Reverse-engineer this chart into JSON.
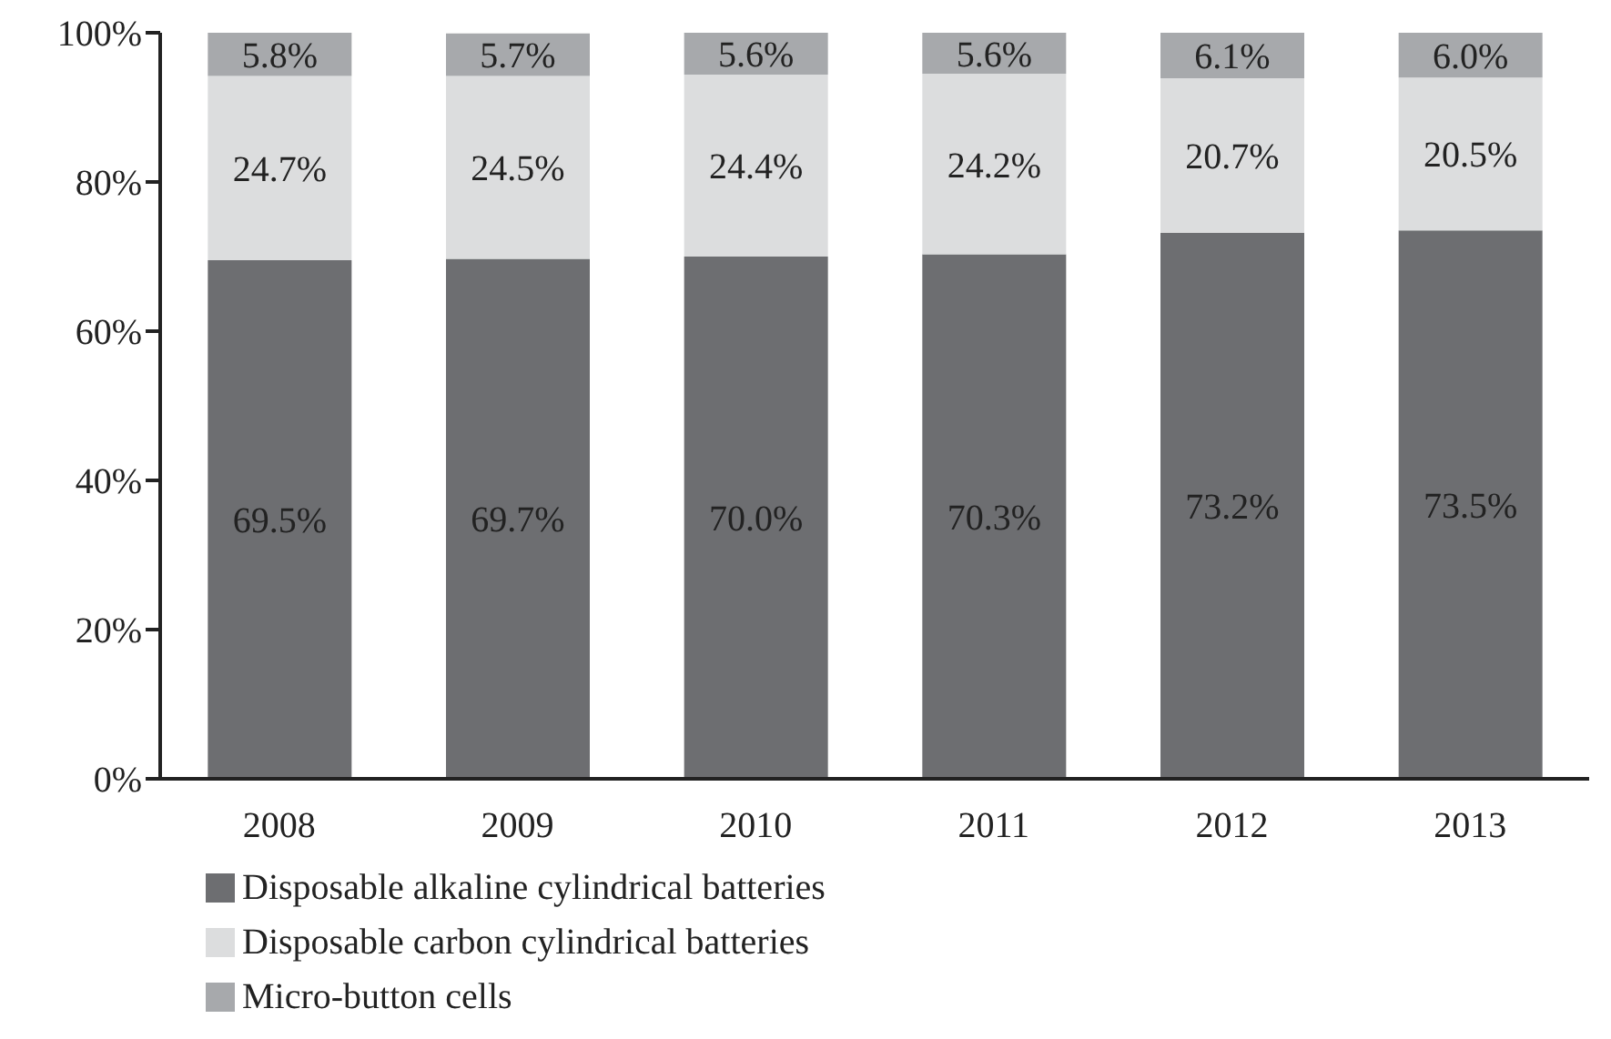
{
  "chart_data": {
    "type": "bar",
    "stacked": true,
    "categories": [
      "2008",
      "2009",
      "2010",
      "2011",
      "2012",
      "2013"
    ],
    "series": [
      {
        "name": "Disposable alkaline cylindrical batteries",
        "color": "#6d6e71",
        "values": [
          69.5,
          69.7,
          70.0,
          70.3,
          73.2,
          73.5
        ],
        "value_labels": [
          "69.5%",
          "69.7%",
          "70.0%",
          "70.3%",
          "73.2%",
          "73.5%"
        ]
      },
      {
        "name": "Disposable carbon cylindrical batteries",
        "color": "#dcddde",
        "values": [
          24.7,
          24.5,
          24.4,
          24.2,
          20.7,
          20.5
        ],
        "value_labels": [
          "24.7%",
          "24.5%",
          "24.4%",
          "24.2%",
          "20.7%",
          "20.5%"
        ]
      },
      {
        "name": "Micro-button cells",
        "color": "#a7a9ac",
        "values": [
          5.8,
          5.7,
          5.6,
          5.6,
          6.1,
          6.0
        ],
        "value_labels": [
          "5.8%",
          "5.7%",
          "5.6%",
          "5.6%",
          "6.1%",
          "6.0%"
        ]
      }
    ],
    "ylim": [
      0,
      100
    ],
    "yticks": [
      {
        "value": 0,
        "label": "0%"
      },
      {
        "value": 20,
        "label": "20%"
      },
      {
        "value": 40,
        "label": "40%"
      },
      {
        "value": 60,
        "label": "60%"
      },
      {
        "value": 80,
        "label": "80%"
      },
      {
        "value": 100,
        "label": "100%"
      }
    ],
    "legend": "bottom"
  }
}
